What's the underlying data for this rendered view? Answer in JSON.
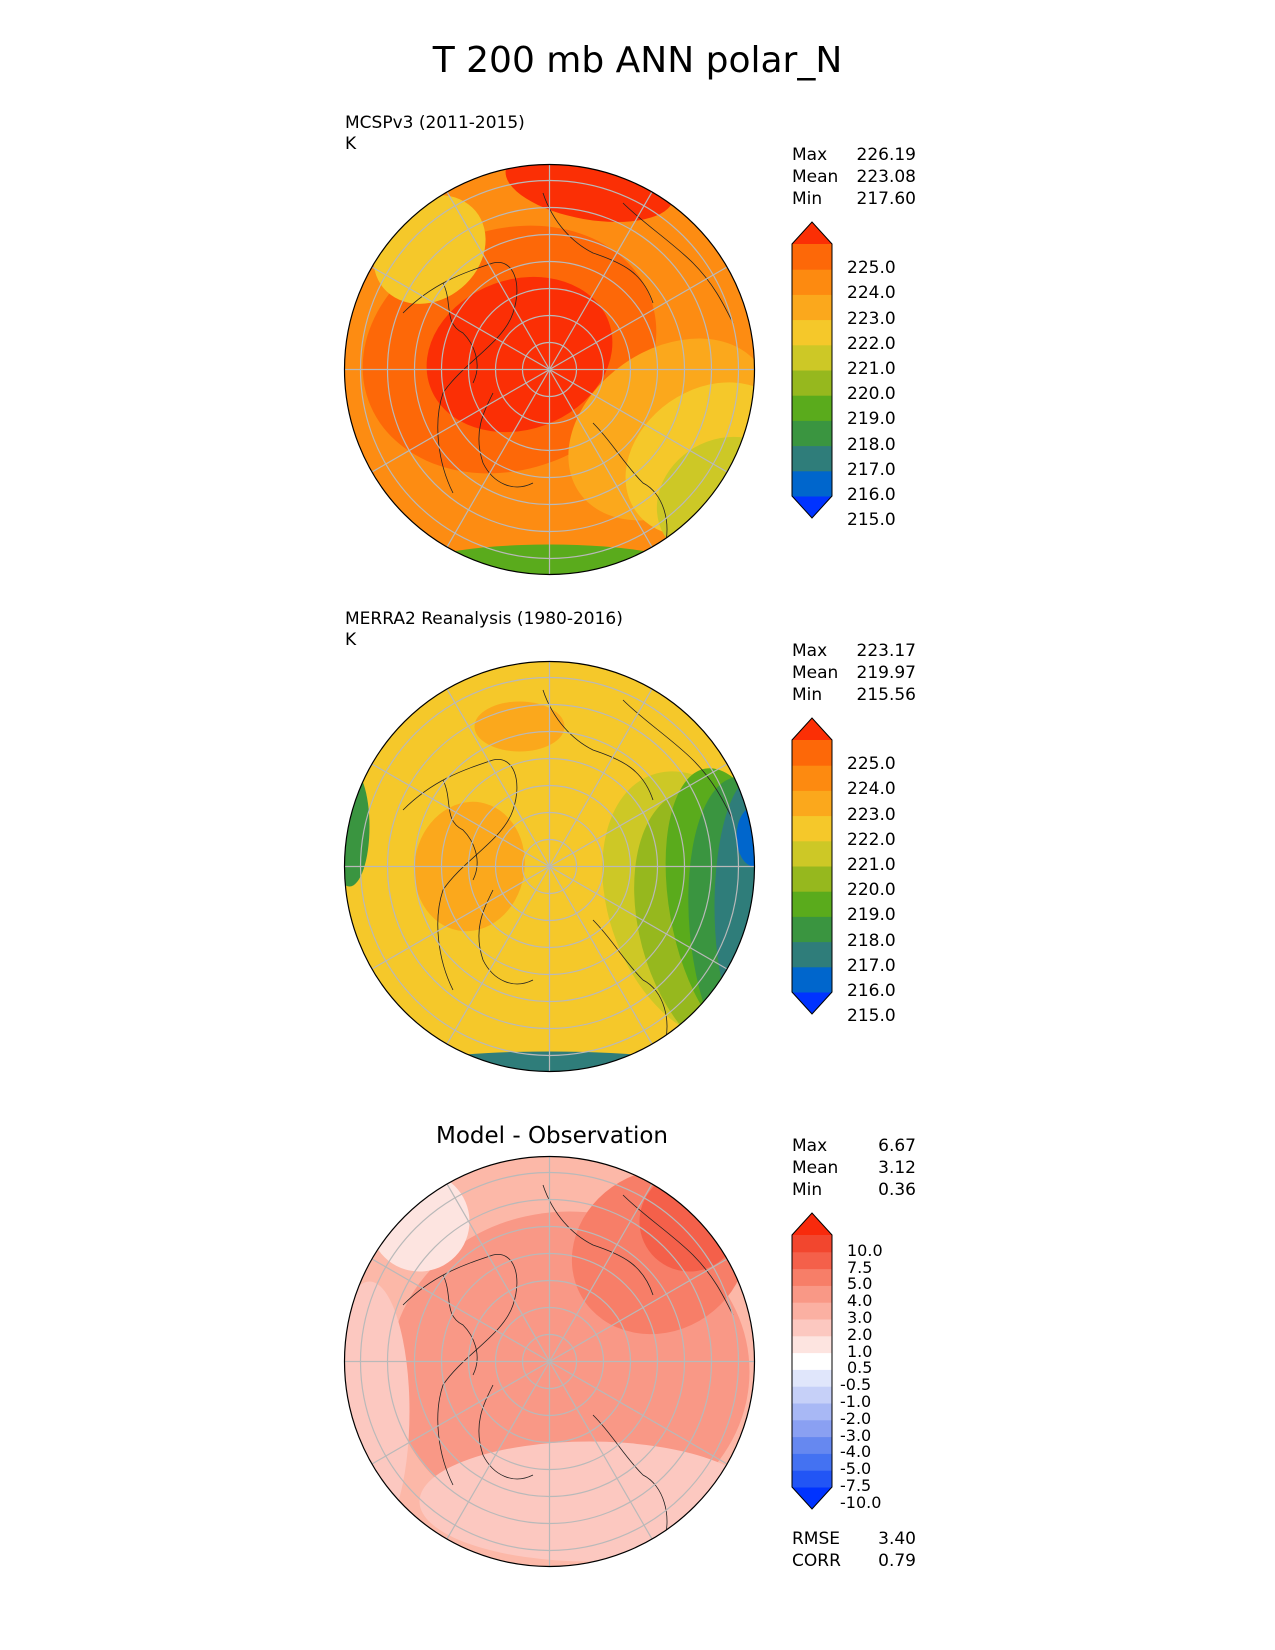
{
  "figure": {
    "title": "T 200 mb ANN polar_N",
    "panels": [
      {
        "id": "model",
        "title": "MCSPv3 (2011-2015)",
        "units": "K",
        "stats": [
          {
            "label": "Max",
            "value": "226.19"
          },
          {
            "label": "Mean",
            "value": "223.08"
          },
          {
            "label": "Min",
            "value": "217.60"
          }
        ],
        "colorbar": {
          "ticks": [
            "225.0",
            "224.0",
            "223.0",
            "222.0",
            "221.0",
            "220.0",
            "219.0",
            "218.0",
            "217.0",
            "216.0",
            "215.0"
          ],
          "colors": [
            "#0033ff",
            "#0066cc",
            "#2f7d7a",
            "#3a9540",
            "#5aab1c",
            "#96b81e",
            "#cdc826",
            "#f5c82a",
            "#fba81c",
            "#fd8a10",
            "#fd6808",
            "#fb2f05"
          ]
        },
        "map": {
          "background": "#fd8c12",
          "field_range": "warm"
        }
      },
      {
        "id": "obs",
        "title": "MERRA2 Reanalysis (1980-2016)",
        "units": "K",
        "stats": [
          {
            "label": "Max",
            "value": "223.17"
          },
          {
            "label": "Mean",
            "value": "219.97"
          },
          {
            "label": "Min",
            "value": "215.56"
          }
        ],
        "colorbar": {
          "ticks": [
            "225.0",
            "224.0",
            "223.0",
            "222.0",
            "221.0",
            "220.0",
            "219.0",
            "218.0",
            "217.0",
            "216.0",
            "215.0"
          ],
          "colors": [
            "#0033ff",
            "#0066cc",
            "#2f7d7a",
            "#3a9540",
            "#5aab1c",
            "#96b81e",
            "#cdc826",
            "#f5c82a",
            "#fba81c",
            "#fd8a10",
            "#fd6808",
            "#fb2f05"
          ]
        },
        "map": {
          "background": "#f5c82a",
          "field_range": "mid"
        }
      },
      {
        "id": "diff",
        "title": "Model - Observation",
        "units": "",
        "stats": [
          {
            "label": "Max",
            "value": "6.67"
          },
          {
            "label": "Mean",
            "value": "3.12"
          },
          {
            "label": "Min",
            "value": "0.36"
          }
        ],
        "colorbar": {
          "ticks": [
            "10.0",
            "7.5",
            "5.0",
            "4.0",
            "3.0",
            "2.0",
            "1.0",
            "0.5",
            "-0.5",
            "-1.0",
            "-2.0",
            "-3.0",
            "-4.0",
            "-5.0",
            "-7.5",
            "-10.0"
          ],
          "colors": [
            "#0033ff",
            "#2255f5",
            "#4472f2",
            "#6688f0",
            "#8aa0f2",
            "#a8b8f5",
            "#c6d0f8",
            "#e0e6fb",
            "#ffffff",
            "#fde4e0",
            "#fcc8c0",
            "#fbb0a2",
            "#f99886",
            "#f77e68",
            "#f4604a",
            "#f2462e",
            "#f82a0c"
          ]
        },
        "metrics": [
          {
            "label": "RMSE",
            "value": "3.40"
          },
          {
            "label": "CORR",
            "value": "0.79"
          }
        ],
        "map": {
          "background": "#fcb8a8",
          "field_range": "diff"
        }
      }
    ]
  }
}
